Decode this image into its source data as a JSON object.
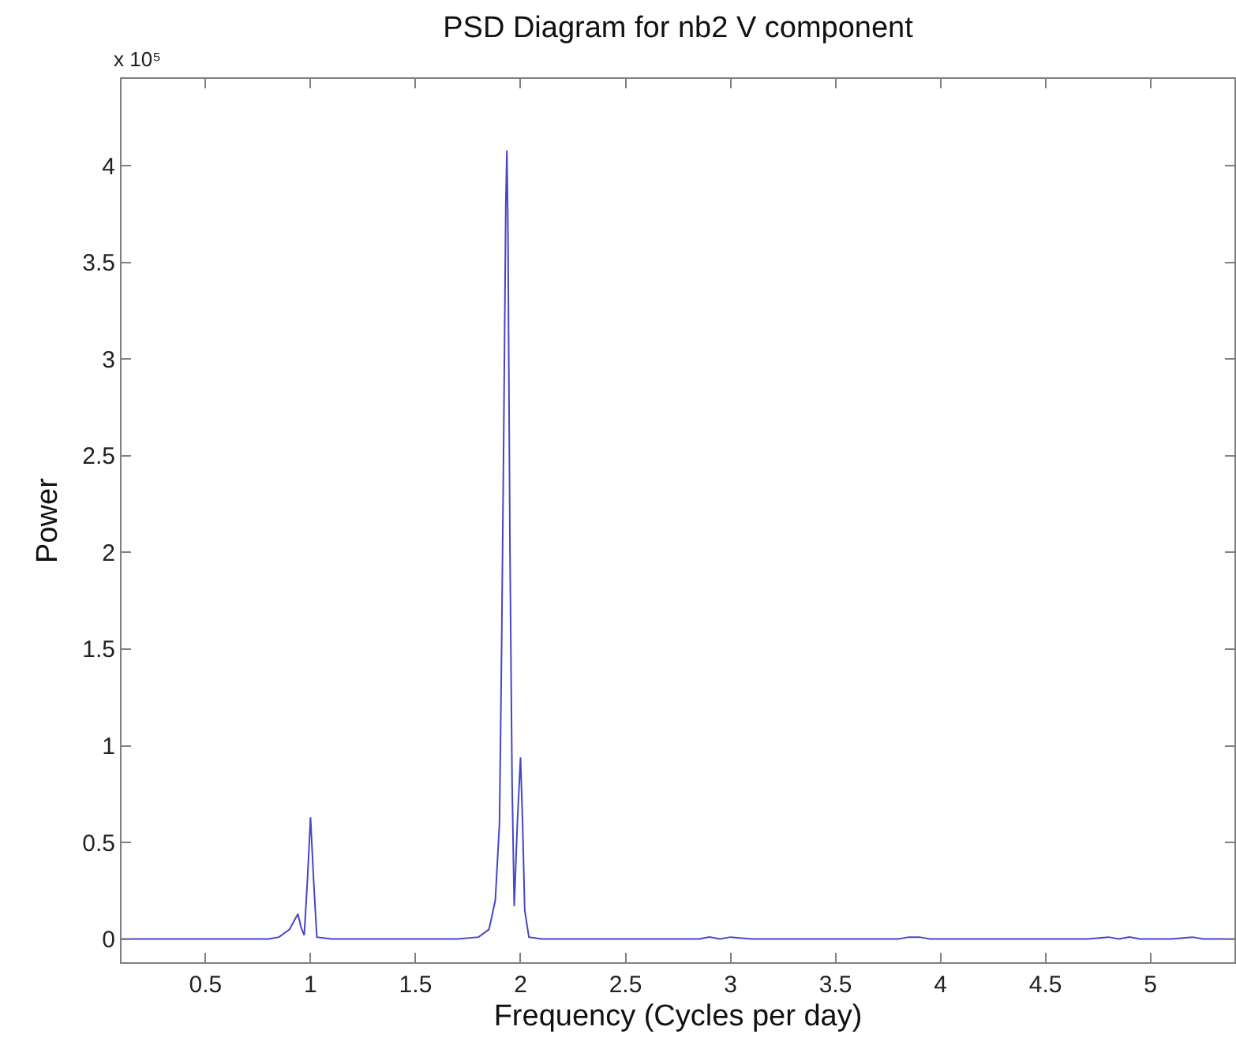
{
  "chart_data": {
    "type": "line",
    "title": "PSD Diagram for nb2 V component",
    "xlabel": "Frequency (Cycles per day)",
    "ylabel": "Power",
    "annotations": [
      "x 10⁵"
    ],
    "series": [
      {
        "color": "#4646c8",
        "x": [
          0.1,
          0.3,
          0.5,
          0.7,
          0.8,
          0.85,
          0.9,
          0.925,
          0.94,
          0.955,
          0.97,
          0.985,
          1.0,
          1.015,
          1.03,
          1.1,
          1.3,
          1.5,
          1.7,
          1.8,
          1.85,
          1.88,
          1.9,
          1.91,
          1.92,
          1.93,
          1.935,
          1.94,
          1.95,
          1.96,
          1.97,
          1.985,
          2.0,
          2.01,
          2.02,
          2.04,
          2.1,
          2.3,
          2.6,
          2.85,
          2.9,
          2.95,
          3.0,
          3.1,
          3.5,
          3.8,
          3.85,
          3.9,
          3.95,
          4.2,
          4.7,
          4.8,
          4.85,
          4.9,
          4.95,
          5.0,
          5.1,
          5.2,
          5.25,
          5.4
        ],
        "values": [
          0,
          0,
          0,
          0,
          0,
          0.01,
          0.05,
          0.1,
          0.13,
          0.06,
          0.02,
          0.3,
          0.63,
          0.3,
          0.01,
          0,
          0,
          0,
          0,
          0.01,
          0.05,
          0.2,
          0.6,
          1.5,
          2.6,
          3.8,
          4.08,
          3.7,
          2.0,
          0.8,
          0.17,
          0.6,
          0.94,
          0.6,
          0.15,
          0.01,
          0,
          0,
          0,
          0,
          0.01,
          0,
          0.01,
          0,
          0,
          0,
          0.01,
          0.01,
          0,
          0,
          0,
          0.01,
          0,
          0.01,
          0,
          0,
          0,
          0.01,
          0,
          0
        ]
      }
    ],
    "xlim": [
      0.1,
      5.4
    ],
    "ylim": [
      -0.12,
      4.45
    ],
    "xticks": [
      0.5,
      1,
      1.5,
      2,
      2.5,
      3,
      3.5,
      4,
      4.5,
      5
    ],
    "yticks": [
      0,
      0.5,
      1,
      1.5,
      2,
      2.5,
      3,
      3.5,
      4
    ],
    "marker": "none",
    "line_style": "solid"
  }
}
